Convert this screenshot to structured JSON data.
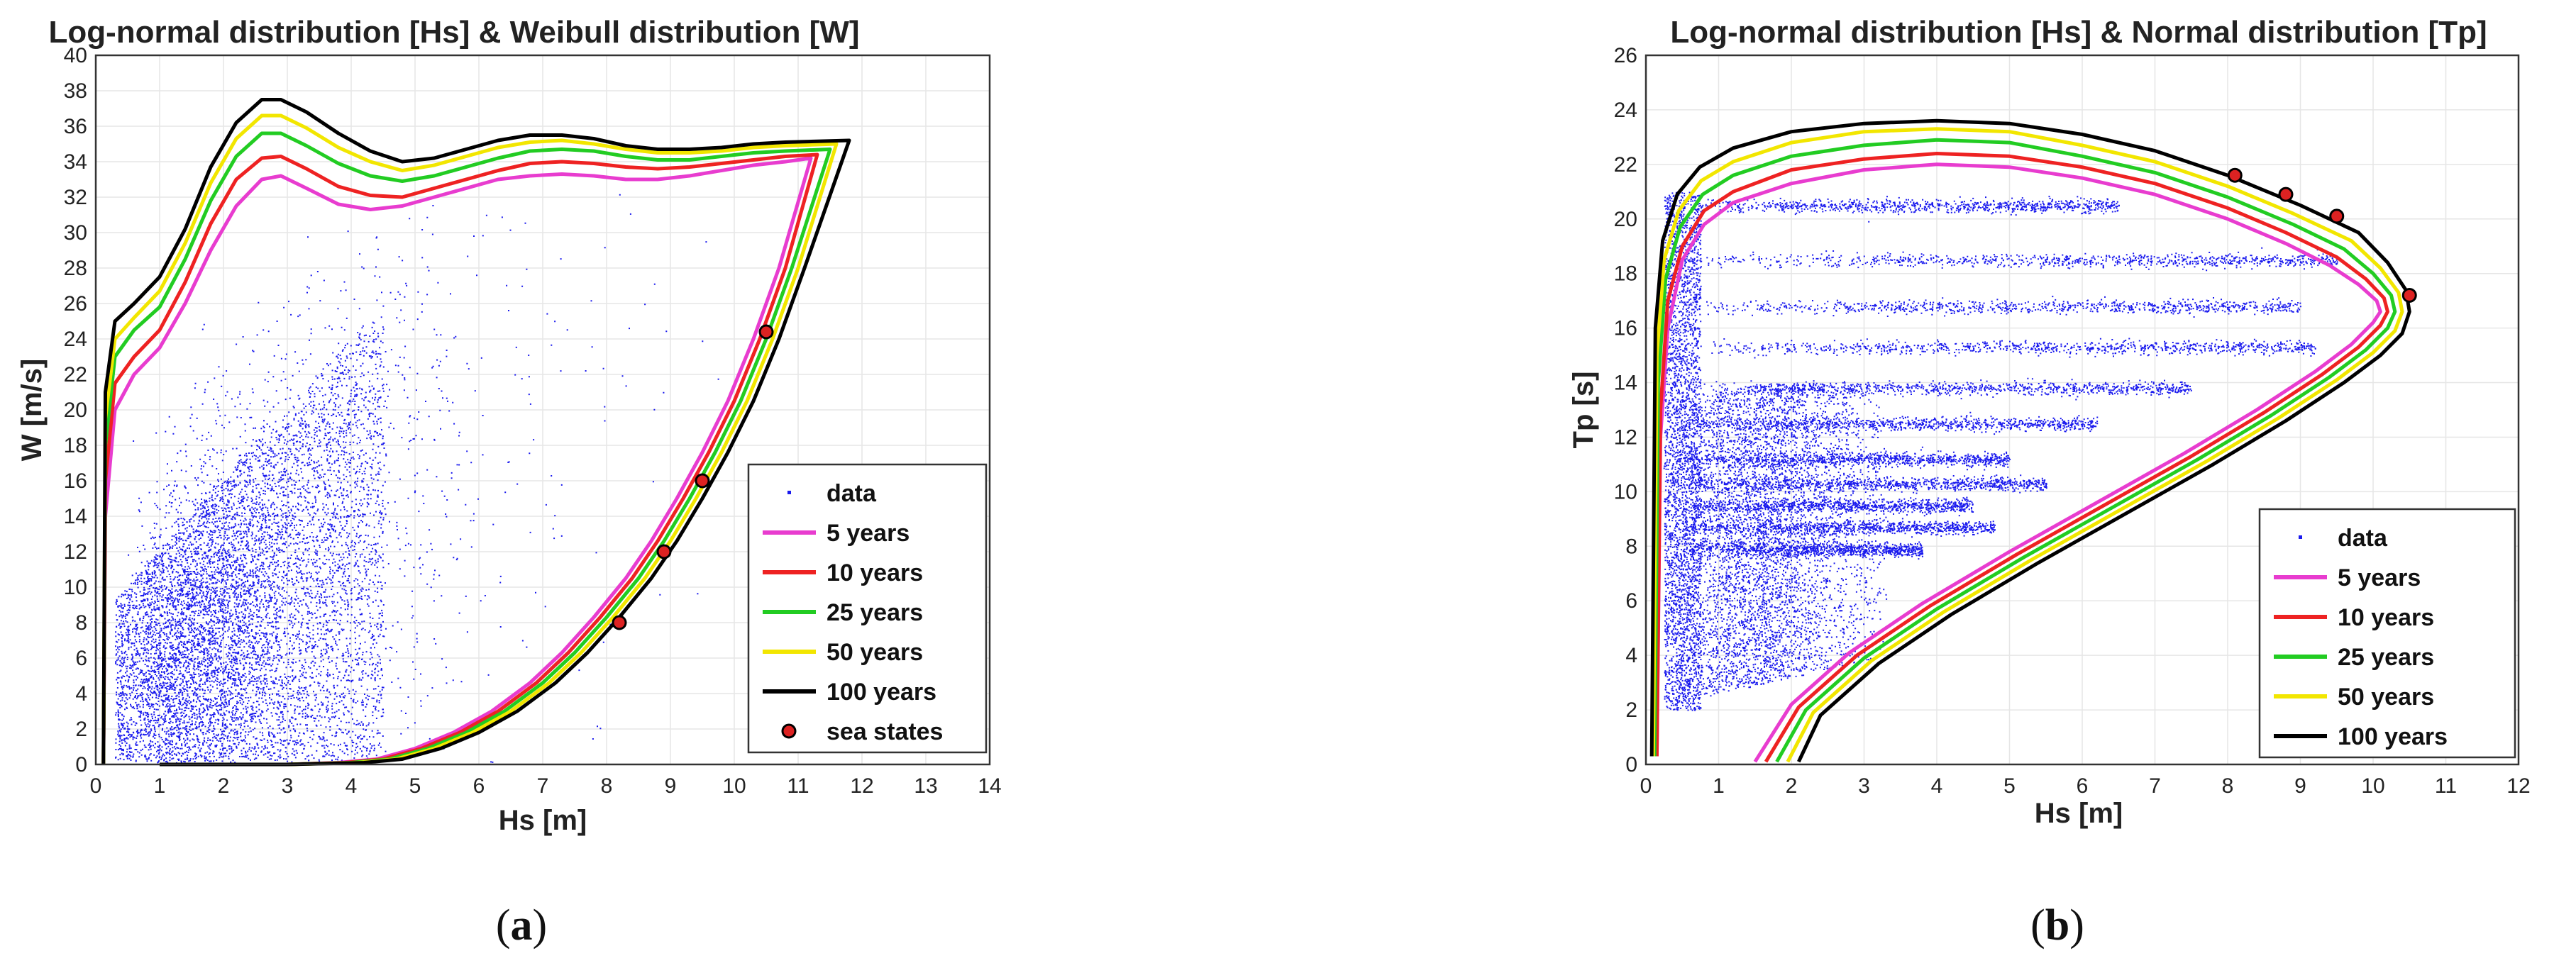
{
  "chart_data": [
    {
      "panel": "a",
      "type": "scatter",
      "title": "Log-normal distribution [Hs] & Weibull distribution [W]",
      "xlabel": "Hs [m]",
      "ylabel": "W [m/s]",
      "xlim": [
        0,
        14
      ],
      "ylim": [
        0,
        40
      ],
      "xticks": [
        "0",
        "1",
        "2",
        "3",
        "4",
        "5",
        "6",
        "7",
        "8",
        "9",
        "10",
        "11",
        "12",
        "13",
        "14"
      ],
      "yticks": [
        "0",
        "2",
        "4",
        "6",
        "8",
        "10",
        "12",
        "14",
        "16",
        "18",
        "20",
        "22",
        "24",
        "26",
        "28",
        "30",
        "32",
        "34",
        "36",
        "38",
        "40"
      ],
      "grid": true,
      "legend_position": "bottom-right",
      "legend": [
        "data",
        "5 years",
        "10 years",
        "25 years",
        "50 years",
        "100 years",
        "sea states"
      ],
      "series": [
        {
          "name": "5 years",
          "color": "#e83ccf",
          "x": [
            0.12,
            0.15,
            0.3,
            0.6,
            1.0,
            1.4,
            1.8,
            2.2,
            2.6,
            2.9,
            3.3,
            3.8,
            4.3,
            4.8,
            5.3,
            5.8,
            6.3,
            6.8,
            7.3,
            7.8,
            8.3,
            8.8,
            9.3,
            9.8,
            10.3,
            10.8,
            11.2
          ],
          "y": [
            0,
            14,
            20,
            22,
            23.5,
            26,
            29,
            31.5,
            33,
            33.2,
            32.5,
            31.6,
            31.3,
            31.5,
            32,
            32.5,
            33,
            33.2,
            33.3,
            33.2,
            33,
            33,
            33.2,
            33.5,
            33.8,
            34,
            34.2
          ]
        },
        {
          "name": "10 years",
          "color": "#ee2222",
          "x": [
            0.12,
            0.15,
            0.3,
            0.6,
            1.0,
            1.4,
            1.8,
            2.2,
            2.6,
            2.9,
            3.3,
            3.8,
            4.3,
            4.8,
            5.3,
            5.8,
            6.3,
            6.8,
            7.3,
            7.8,
            8.3,
            8.8,
            9.3,
            9.8,
            10.3,
            10.8,
            11.3
          ],
          "y": [
            0,
            16,
            21.5,
            23,
            24.5,
            27.2,
            30.5,
            33,
            34.2,
            34.3,
            33.6,
            32.6,
            32.1,
            32,
            32.5,
            33,
            33.5,
            33.9,
            34,
            33.9,
            33.7,
            33.6,
            33.7,
            33.9,
            34.1,
            34.3,
            34.4
          ]
        },
        {
          "name": "25 years",
          "color": "#22cc22",
          "x": [
            0.12,
            0.15,
            0.3,
            0.6,
            1.0,
            1.4,
            1.8,
            2.2,
            2.6,
            2.9,
            3.3,
            3.8,
            4.3,
            4.8,
            5.3,
            5.8,
            6.3,
            6.8,
            7.3,
            7.8,
            8.3,
            8.8,
            9.3,
            9.8,
            10.3,
            10.8,
            11.5
          ],
          "y": [
            0,
            18,
            23,
            24.5,
            25.8,
            28.5,
            31.8,
            34.3,
            35.6,
            35.6,
            34.9,
            33.9,
            33.2,
            32.9,
            33.2,
            33.7,
            34.2,
            34.6,
            34.7,
            34.6,
            34.3,
            34.1,
            34.1,
            34.3,
            34.5,
            34.6,
            34.7
          ]
        },
        {
          "name": "50 years",
          "color": "#f2e600",
          "x": [
            0.12,
            0.15,
            0.3,
            0.6,
            1.0,
            1.4,
            1.8,
            2.2,
            2.6,
            2.9,
            3.3,
            3.8,
            4.3,
            4.8,
            5.3,
            5.8,
            6.3,
            6.8,
            7.3,
            7.8,
            8.3,
            8.8,
            9.3,
            9.8,
            10.3,
            10.8,
            11.6
          ],
          "y": [
            0,
            19.5,
            24,
            25.2,
            26.7,
            29.4,
            32.8,
            35.3,
            36.6,
            36.6,
            35.9,
            34.8,
            34.0,
            33.5,
            33.8,
            34.3,
            34.8,
            35.1,
            35.2,
            35.0,
            34.7,
            34.5,
            34.5,
            34.6,
            34.8,
            34.9,
            35.0
          ]
        },
        {
          "name": "100 years",
          "color": "#000000",
          "x": [
            0.12,
            0.15,
            0.3,
            0.6,
            1.0,
            1.4,
            1.8,
            2.2,
            2.6,
            2.9,
            3.3,
            3.8,
            4.3,
            4.8,
            5.3,
            5.8,
            6.3,
            6.8,
            7.3,
            7.8,
            8.3,
            8.8,
            9.3,
            9.8,
            10.3,
            10.8,
            11.8
          ],
          "y": [
            0,
            21,
            25,
            26,
            27.5,
            30.2,
            33.7,
            36.2,
            37.5,
            37.5,
            36.8,
            35.6,
            34.6,
            34.0,
            34.2,
            34.7,
            35.2,
            35.5,
            35.5,
            35.3,
            34.9,
            34.7,
            34.7,
            34.8,
            35.0,
            35.1,
            35.2
          ]
        },
        {
          "name": "sea states",
          "color": "#dd2222",
          "x": [
            8.2,
            8.9,
            9.5,
            10.5
          ],
          "y": [
            8,
            12,
            16,
            24.4
          ]
        }
      ],
      "lower_branches": [
        {
          "name": "5 years",
          "x": [
            1.0,
            2.0,
            3.0,
            3.8,
            4.4,
            5.0,
            5.6,
            6.2,
            6.8,
            7.3,
            7.8,
            8.3,
            8.7,
            9.1,
            9.5,
            9.9,
            10.3,
            10.7,
            11.2
          ],
          "y": [
            0,
            0,
            0,
            0.1,
            0.3,
            0.9,
            1.8,
            3.0,
            4.6,
            6.3,
            8.3,
            10.5,
            12.6,
            15,
            17.6,
            20.5,
            24,
            28,
            34.2
          ]
        },
        {
          "name": "10 years",
          "x": [
            1.0,
            2.0,
            3.0,
            3.9,
            4.5,
            5.1,
            5.7,
            6.3,
            6.9,
            7.4,
            7.9,
            8.4,
            8.8,
            9.2,
            9.6,
            10.0,
            10.4,
            10.8,
            11.3
          ],
          "y": [
            0,
            0,
            0,
            0.1,
            0.3,
            0.9,
            1.8,
            3.0,
            4.6,
            6.3,
            8.3,
            10.5,
            12.6,
            15,
            17.6,
            20.5,
            24,
            28,
            34.4
          ]
        },
        {
          "name": "25 years",
          "x": [
            1.0,
            2.0,
            3.0,
            4.0,
            4.6,
            5.2,
            5.8,
            6.4,
            7.0,
            7.5,
            8.0,
            8.5,
            8.9,
            9.3,
            9.7,
            10.1,
            10.5,
            10.9,
            11.5
          ],
          "y": [
            0,
            0,
            0,
            0.1,
            0.3,
            0.9,
            1.8,
            3.0,
            4.6,
            6.3,
            8.3,
            10.5,
            12.6,
            15,
            17.6,
            20.5,
            24,
            28,
            34.7
          ]
        },
        {
          "name": "50 years",
          "x": [
            1.0,
            2.0,
            3.0,
            4.1,
            4.7,
            5.3,
            5.9,
            6.5,
            7.1,
            7.6,
            8.1,
            8.6,
            9.0,
            9.4,
            9.8,
            10.2,
            10.6,
            11.0,
            11.6
          ],
          "y": [
            0,
            0,
            0,
            0.1,
            0.3,
            0.9,
            1.8,
            3.0,
            4.6,
            6.3,
            8.3,
            10.5,
            12.6,
            15,
            17.6,
            20.5,
            24,
            28,
            35.0
          ]
        },
        {
          "name": "100 years",
          "x": [
            1.0,
            2.0,
            3.0,
            4.2,
            4.8,
            5.4,
            6.0,
            6.6,
            7.2,
            7.7,
            8.2,
            8.7,
            9.1,
            9.5,
            9.9,
            10.3,
            10.7,
            11.1,
            11.8
          ],
          "y": [
            0,
            0,
            0,
            0.1,
            0.3,
            0.9,
            1.8,
            3.0,
            4.6,
            6.3,
            8.3,
            10.5,
            12.6,
            15,
            17.6,
            20.5,
            24,
            28,
            35.2
          ]
        }
      ]
    },
    {
      "panel": "b",
      "type": "scatter",
      "title": "Log-normal distribution [Hs] & Normal distribution [Tp]",
      "xlabel": "Hs [m]",
      "ylabel": "Tp [s]",
      "xlim": [
        0,
        12
      ],
      "ylim": [
        0,
        26
      ],
      "xticks": [
        "0",
        "1",
        "2",
        "3",
        "4",
        "5",
        "6",
        "7",
        "8",
        "9",
        "10",
        "11",
        "12"
      ],
      "yticks": [
        "0",
        "2",
        "4",
        "6",
        "8",
        "10",
        "12",
        "14",
        "16",
        "18",
        "20",
        "22",
        "24",
        "26"
      ],
      "grid": true,
      "legend_position": "bottom-right",
      "legend": [
        "data",
        "5 years",
        "10 years",
        "25 years",
        "50 years",
        "100 years"
      ],
      "series": [
        {
          "name": "5 years",
          "color": "#e83ccf",
          "x": [
            0.15,
            0.2,
            0.3,
            0.5,
            0.8,
            1.2,
            2.0,
            3.0,
            4.0,
            5.0,
            6.0,
            7.0,
            8.0,
            8.8,
            9.4,
            9.8,
            10.05,
            10.1,
            10.0,
            9.7,
            9.2,
            8.4,
            7.4,
            6.2,
            5.0,
            3.8,
            2.8,
            2.0,
            1.5
          ],
          "y": [
            0.3,
            12,
            16,
            18.5,
            19.8,
            20.6,
            21.3,
            21.8,
            22.0,
            21.9,
            21.5,
            20.9,
            20.0,
            19.1,
            18.3,
            17.6,
            17.0,
            16.6,
            16.2,
            15.4,
            14.4,
            13.0,
            11.4,
            9.6,
            7.8,
            5.9,
            4.1,
            2.2,
            0.1
          ]
        },
        {
          "name": "10 years",
          "color": "#ee2222",
          "x": [
            0.15,
            0.2,
            0.3,
            0.5,
            0.8,
            1.2,
            2.0,
            3.0,
            4.0,
            5.0,
            6.0,
            7.0,
            8.0,
            8.8,
            9.5,
            9.9,
            10.15,
            10.2,
            10.1,
            9.8,
            9.3,
            8.5,
            7.5,
            6.3,
            5.1,
            3.9,
            2.9,
            2.1,
            1.65
          ],
          "y": [
            0.3,
            13,
            17,
            19,
            20.3,
            21.0,
            21.8,
            22.2,
            22.4,
            22.3,
            21.9,
            21.3,
            20.4,
            19.5,
            18.6,
            17.8,
            17.1,
            16.6,
            16.1,
            15.3,
            14.3,
            12.9,
            11.3,
            9.5,
            7.7,
            5.8,
            4.0,
            2.1,
            0.1
          ]
        },
        {
          "name": "25 years",
          "color": "#22cc22",
          "x": [
            0.12,
            0.17,
            0.27,
            0.47,
            0.78,
            1.2,
            2.0,
            3.0,
            4.0,
            5.0,
            6.0,
            7.0,
            8.0,
            8.9,
            9.6,
            10.0,
            10.25,
            10.3,
            10.2,
            9.9,
            9.4,
            8.6,
            7.6,
            6.4,
            5.2,
            4.0,
            3.0,
            2.2,
            1.8
          ],
          "y": [
            0.3,
            14,
            17.8,
            19.7,
            20.9,
            21.6,
            22.3,
            22.7,
            22.9,
            22.8,
            22.3,
            21.7,
            20.8,
            19.8,
            18.9,
            18.0,
            17.2,
            16.6,
            16.0,
            15.2,
            14.2,
            12.8,
            11.2,
            9.4,
            7.6,
            5.7,
            3.9,
            2.0,
            0.1
          ]
        },
        {
          "name": "50 years",
          "color": "#f2e600",
          "x": [
            0.1,
            0.15,
            0.25,
            0.45,
            0.76,
            1.2,
            2.0,
            3.0,
            4.0,
            5.0,
            6.0,
            7.0,
            8.0,
            8.9,
            9.7,
            10.1,
            10.35,
            10.4,
            10.3,
            10.0,
            9.5,
            8.7,
            7.7,
            6.5,
            5.3,
            4.1,
            3.1,
            2.3,
            1.95
          ],
          "y": [
            0.3,
            15,
            18.5,
            20.3,
            21.4,
            22.1,
            22.8,
            23.2,
            23.3,
            23.2,
            22.7,
            22.1,
            21.2,
            20.2,
            19.2,
            18.2,
            17.3,
            16.6,
            15.9,
            15.1,
            14.1,
            12.7,
            11.1,
            9.3,
            7.5,
            5.6,
            3.8,
            1.9,
            0.1
          ]
        },
        {
          "name": "100 years",
          "color": "#000000",
          "x": [
            0.08,
            0.13,
            0.23,
            0.43,
            0.74,
            1.2,
            2.0,
            3.0,
            4.0,
            5.0,
            6.0,
            7.0,
            8.0,
            9.0,
            9.8,
            10.2,
            10.45,
            10.5,
            10.4,
            10.1,
            9.6,
            8.8,
            7.8,
            6.6,
            5.4,
            4.2,
            3.2,
            2.4,
            2.1
          ],
          "y": [
            0.3,
            16,
            19.2,
            20.9,
            21.9,
            22.6,
            23.2,
            23.5,
            23.6,
            23.5,
            23.1,
            22.5,
            21.6,
            20.5,
            19.5,
            18.4,
            17.4,
            16.6,
            15.8,
            15.0,
            14.0,
            12.6,
            11.0,
            9.2,
            7.4,
            5.5,
            3.7,
            1.8,
            0.1
          ]
        },
        {
          "name": "sea states",
          "color": "#dd2222",
          "x": [
            8.1,
            8.8,
            9.5,
            10.5
          ],
          "y": [
            21.6,
            20.9,
            20.1,
            17.2
          ]
        }
      ],
      "data_bands": [
        {
          "tp": 20.5,
          "max_hs": 6.5
        },
        {
          "tp": 18.5,
          "max_hs": 9.5
        },
        {
          "tp": 16.8,
          "max_hs": 9.0
        },
        {
          "tp": 15.3,
          "max_hs": 9.2
        },
        {
          "tp": 13.8,
          "max_hs": 7.5
        },
        {
          "tp": 12.5,
          "max_hs": 6.2
        },
        {
          "tp": 11.2,
          "max_hs": 5.0
        },
        {
          "tp": 10.3,
          "max_hs": 5.5
        },
        {
          "tp": 9.5,
          "max_hs": 4.5
        },
        {
          "tp": 8.7,
          "max_hs": 4.8
        },
        {
          "tp": 7.9,
          "max_hs": 3.8
        }
      ]
    }
  ],
  "captions": {
    "a": {
      "open": "(",
      "letter": "a",
      "close": ")"
    },
    "b": {
      "open": "(",
      "letter": "b",
      "close": ")"
    }
  }
}
